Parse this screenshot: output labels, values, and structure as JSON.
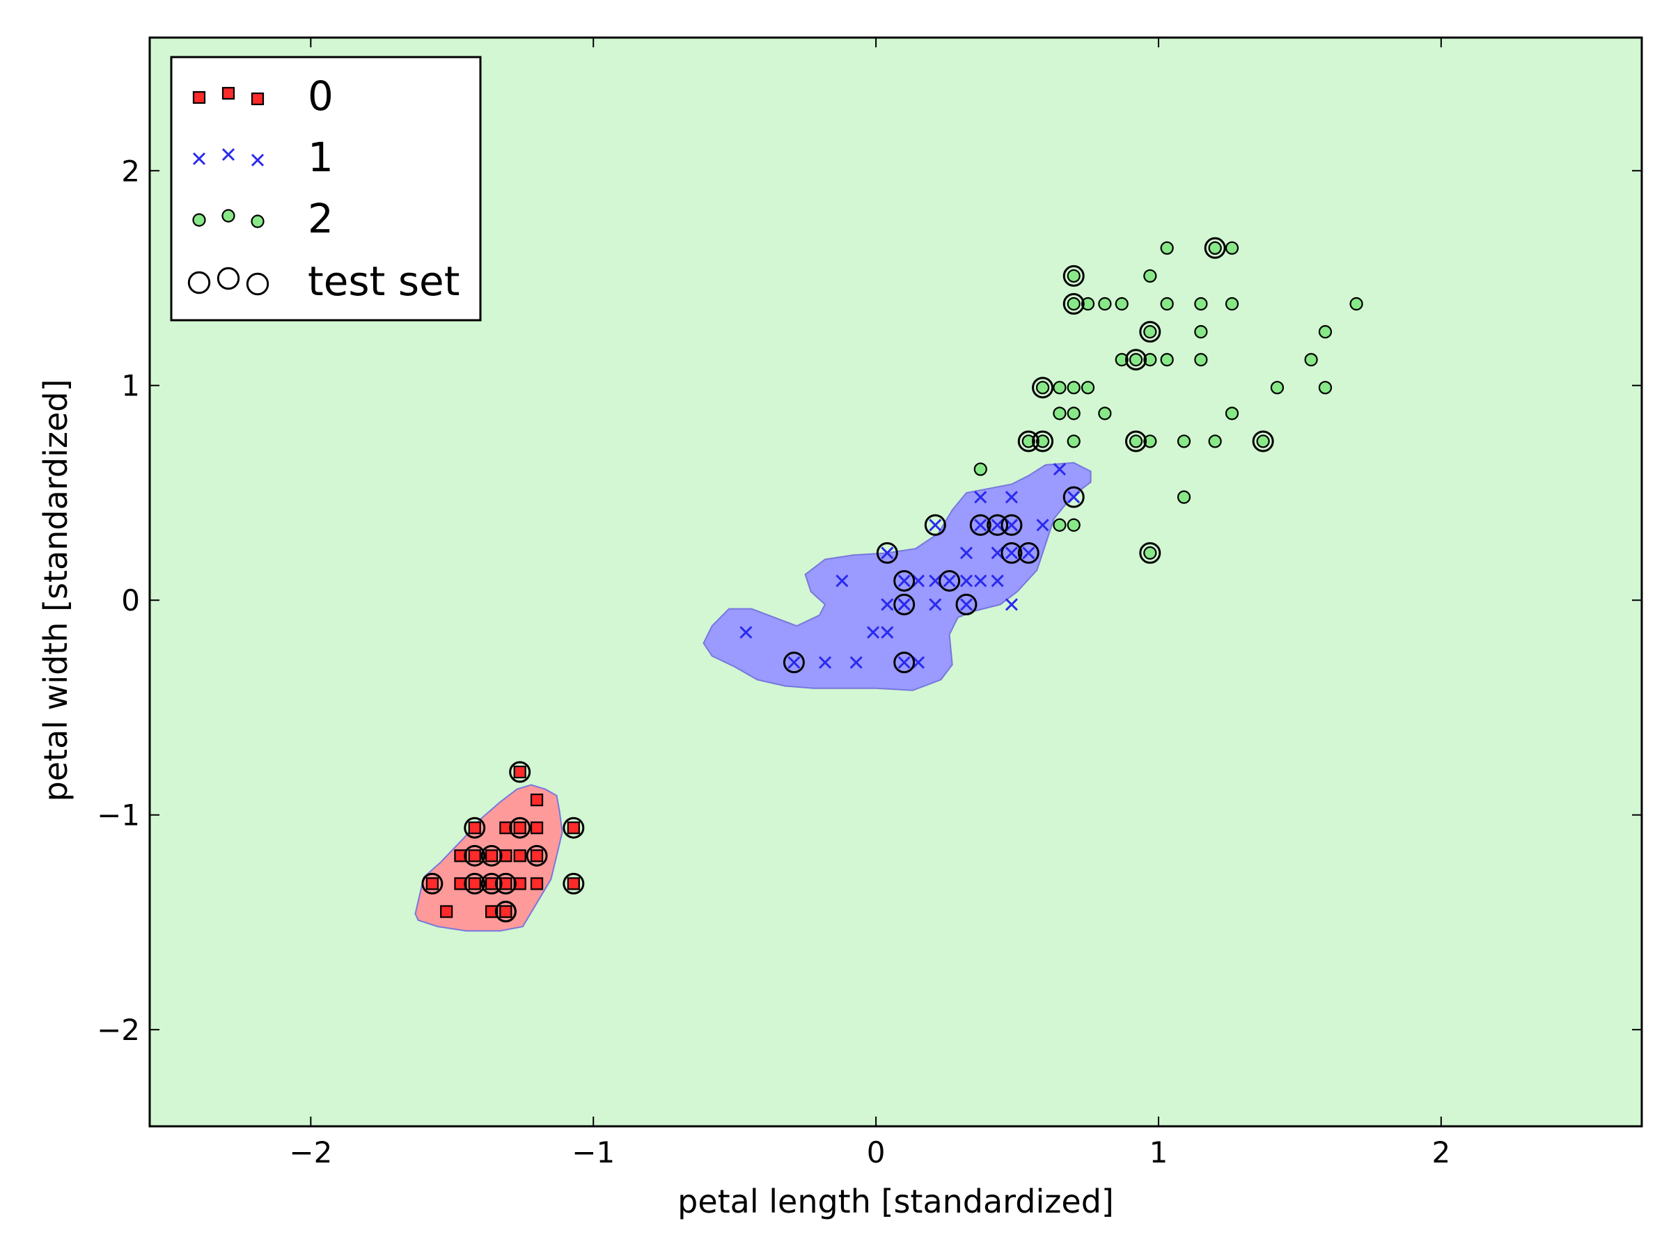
{
  "chart_data": {
    "type": "scatter",
    "title": "",
    "xlabel": "petal length [standardized]",
    "ylabel": "petal width [standardized]",
    "xlim": [
      -2.57,
      2.71
    ],
    "ylim": [
      -2.45,
      2.62
    ],
    "xticks": [
      -2,
      -1,
      0,
      1,
      2
    ],
    "yticks": [
      -2,
      -1,
      0,
      1,
      2
    ],
    "xtick_labels": [
      "−2",
      "−1",
      "0",
      "1",
      "2"
    ],
    "ytick_labels": [
      "−2",
      "−1",
      "0",
      "1",
      "2"
    ],
    "grid": false,
    "legend_position": "top-left",
    "colors": {
      "background": "#d2f7d2",
      "class0_region": "#ff9a9a",
      "class1_region": "#9a9aff",
      "class0_marker": "#ff2a2a",
      "class1_marker": "#2a2aee",
      "class2_marker": "#88e888"
    },
    "regions": [
      {
        "class": "0",
        "polygon": [
          [
            -1.63,
            -1.46
          ],
          [
            -1.6,
            -1.29
          ],
          [
            -1.54,
            -1.22
          ],
          [
            -1.46,
            -1.11
          ],
          [
            -1.4,
            -1.02
          ],
          [
            -1.33,
            -0.94
          ],
          [
            -1.27,
            -0.88
          ],
          [
            -1.22,
            -0.86
          ],
          [
            -1.17,
            -0.88
          ],
          [
            -1.13,
            -0.91
          ],
          [
            -1.12,
            -0.98
          ],
          [
            -1.11,
            -1.08
          ],
          [
            -1.13,
            -1.19
          ],
          [
            -1.15,
            -1.3
          ],
          [
            -1.2,
            -1.41
          ],
          [
            -1.25,
            -1.52
          ],
          [
            -1.33,
            -1.54
          ],
          [
            -1.45,
            -1.54
          ],
          [
            -1.55,
            -1.52
          ],
          [
            -1.62,
            -1.49
          ]
        ]
      },
      {
        "class": "1",
        "polygon": [
          [
            -0.58,
            -0.12
          ],
          [
            -0.52,
            -0.04
          ],
          [
            -0.44,
            -0.04
          ],
          [
            -0.36,
            -0.08
          ],
          [
            -0.28,
            -0.12
          ],
          [
            -0.2,
            -0.07
          ],
          [
            -0.18,
            -0.02
          ],
          [
            -0.23,
            0.04
          ],
          [
            -0.25,
            0.12
          ],
          [
            -0.18,
            0.19
          ],
          [
            -0.08,
            0.21
          ],
          [
            0.04,
            0.22
          ],
          [
            0.14,
            0.24
          ],
          [
            0.22,
            0.31
          ],
          [
            0.27,
            0.42
          ],
          [
            0.32,
            0.5
          ],
          [
            0.4,
            0.52
          ],
          [
            0.48,
            0.54
          ],
          [
            0.54,
            0.58
          ],
          [
            0.6,
            0.63
          ],
          [
            0.7,
            0.64
          ],
          [
            0.76,
            0.6
          ],
          [
            0.76,
            0.55
          ],
          [
            0.72,
            0.51
          ],
          [
            0.68,
            0.46
          ],
          [
            0.63,
            0.38
          ],
          [
            0.6,
            0.26
          ],
          [
            0.57,
            0.14
          ],
          [
            0.5,
            0.04
          ],
          [
            0.44,
            -0.02
          ],
          [
            0.35,
            -0.05
          ],
          [
            0.29,
            -0.08
          ],
          [
            0.26,
            -0.16
          ],
          [
            0.27,
            -0.3
          ],
          [
            0.23,
            -0.37
          ],
          [
            0.13,
            -0.42
          ],
          [
            0.0,
            -0.41
          ],
          [
            -0.12,
            -0.41
          ],
          [
            -0.22,
            -0.41
          ],
          [
            -0.32,
            -0.4
          ],
          [
            -0.42,
            -0.37
          ],
          [
            -0.5,
            -0.31
          ],
          [
            -0.58,
            -0.26
          ],
          [
            -0.61,
            -0.2
          ]
        ]
      }
    ],
    "series": [
      {
        "name": "0",
        "marker": "square",
        "x": [
          -1.57,
          -1.52,
          -1.47,
          -1.47,
          -1.42,
          -1.42,
          -1.42,
          -1.36,
          -1.36,
          -1.36,
          -1.31,
          -1.31,
          -1.31,
          -1.31,
          -1.26,
          -1.26,
          -1.26,
          -1.26,
          -1.2,
          -1.2,
          -1.2,
          -1.2,
          -1.07,
          -1.07,
          -1.36,
          -1.31
        ],
        "y": [
          -1.32,
          -1.45,
          -1.32,
          -1.19,
          -1.32,
          -1.19,
          -1.06,
          -1.32,
          -1.19,
          -1.45,
          -1.32,
          -1.19,
          -1.06,
          -1.45,
          -1.32,
          -1.19,
          -1.06,
          -0.8,
          -1.32,
          -1.19,
          -1.06,
          -0.93,
          -1.32,
          -1.06,
          -1.45,
          -1.45
        ]
      },
      {
        "name": "1",
        "marker": "x",
        "x": [
          -0.46,
          -0.29,
          -0.18,
          -0.07,
          -0.01,
          0.04,
          0.04,
          0.1,
          0.1,
          0.1,
          0.15,
          0.15,
          0.21,
          0.21,
          0.21,
          0.26,
          0.32,
          0.32,
          0.32,
          0.37,
          0.37,
          0.37,
          0.43,
          0.43,
          0.43,
          0.48,
          0.48,
          0.48,
          0.48,
          0.48,
          0.54,
          0.59,
          0.65,
          0.7,
          -0.12,
          0.1,
          0.04
        ],
        "y": [
          -0.15,
          -0.29,
          -0.29,
          -0.29,
          -0.15,
          -0.02,
          0.22,
          0.09,
          -0.02,
          -0.29,
          0.09,
          -0.29,
          0.09,
          0.35,
          -0.02,
          0.09,
          0.09,
          0.22,
          -0.02,
          0.09,
          0.35,
          0.48,
          0.22,
          0.35,
          0.09,
          0.22,
          0.35,
          0.48,
          -0.02,
          0.35,
          0.22,
          0.35,
          0.61,
          0.48,
          0.09,
          -0.02,
          -0.15
        ]
      },
      {
        "name": "2",
        "marker": "circle",
        "x": [
          0.37,
          0.54,
          0.59,
          0.59,
          0.65,
          0.65,
          0.65,
          0.7,
          0.7,
          0.7,
          0.7,
          0.7,
          0.7,
          0.75,
          0.75,
          0.81,
          0.81,
          0.87,
          0.87,
          0.92,
          0.92,
          0.97,
          0.97,
          0.97,
          0.97,
          0.97,
          1.03,
          1.03,
          1.03,
          1.09,
          1.09,
          1.15,
          1.15,
          1.15,
          1.2,
          1.2,
          1.2,
          1.26,
          1.26,
          1.26,
          1.37,
          1.42,
          1.54,
          1.59,
          1.59,
          1.7
        ],
        "y": [
          0.61,
          0.74,
          0.74,
          0.99,
          0.87,
          0.99,
          0.35,
          0.74,
          0.87,
          0.99,
          1.38,
          1.51,
          0.35,
          0.99,
          1.38,
          1.38,
          0.87,
          1.38,
          1.12,
          1.12,
          0.74,
          0.74,
          1.51,
          1.25,
          0.22,
          1.12,
          1.64,
          1.38,
          1.12,
          0.74,
          0.48,
          1.25,
          1.38,
          1.12,
          0.74,
          1.64,
          1.64,
          1.38,
          0.87,
          1.64,
          0.74,
          0.99,
          1.12,
          0.99,
          1.25,
          1.38
        ]
      },
      {
        "name": "test set",
        "marker": "open-circle",
        "x": [
          -1.57,
          -1.42,
          -1.42,
          -1.42,
          -1.36,
          -1.36,
          -1.31,
          -1.31,
          -1.26,
          -1.26,
          -1.2,
          -1.07,
          -1.07,
          -1.31,
          -0.29,
          0.04,
          0.1,
          0.1,
          0.1,
          0.21,
          0.26,
          0.32,
          0.37,
          0.43,
          0.48,
          0.48,
          0.54,
          0.7,
          0.54,
          0.59,
          0.59,
          0.7,
          0.7,
          0.92,
          0.92,
          0.97,
          0.97,
          1.2,
          1.37
        ],
        "y": [
          -1.32,
          -1.06,
          -1.19,
          -1.32,
          -1.19,
          -1.32,
          -1.32,
          -1.45,
          -1.06,
          -0.8,
          -1.19,
          -1.06,
          -1.32,
          -1.45,
          -0.29,
          0.22,
          0.09,
          -0.02,
          -0.29,
          0.35,
          0.09,
          -0.02,
          0.35,
          0.35,
          0.35,
          0.22,
          0.22,
          0.48,
          0.74,
          0.74,
          0.99,
          1.38,
          1.51,
          1.12,
          0.74,
          1.25,
          0.22,
          1.64,
          0.74
        ]
      }
    ]
  }
}
